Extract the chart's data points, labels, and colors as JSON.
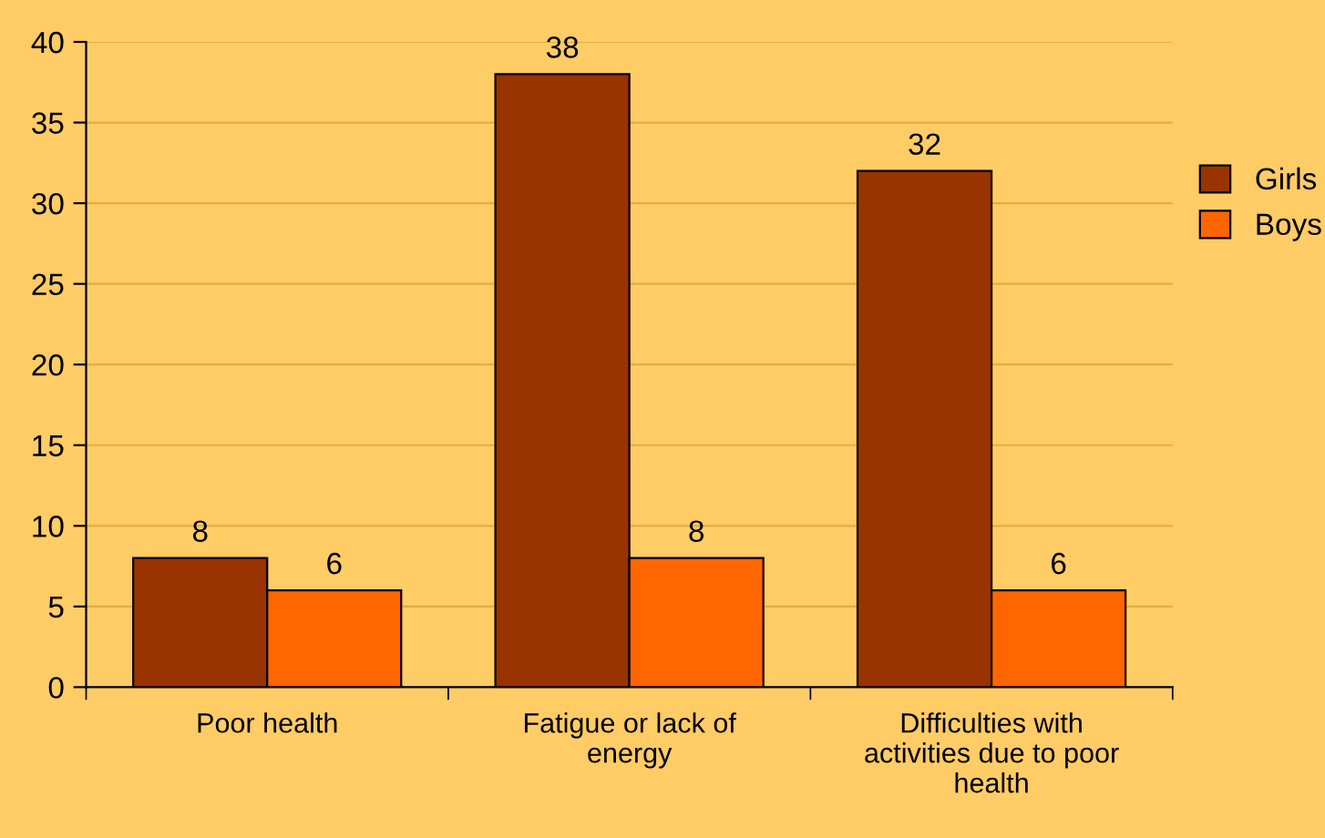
{
  "chart_data": {
    "type": "bar",
    "categories": [
      "Poor health",
      "Fatigue or lack of energy",
      "Difficulties with activities due to poor health"
    ],
    "series": [
      {
        "name": "Girls",
        "color": "#993300",
        "values": [
          8,
          38,
          32
        ]
      },
      {
        "name": "Boys",
        "color": "#ff6600",
        "values": [
          6,
          8,
          6
        ]
      }
    ],
    "ylim": [
      0,
      40
    ],
    "yticks": [
      0,
      5,
      10,
      15,
      20,
      25,
      30,
      35,
      40
    ],
    "grid": "y",
    "legend": "right",
    "data_labels": true
  }
}
